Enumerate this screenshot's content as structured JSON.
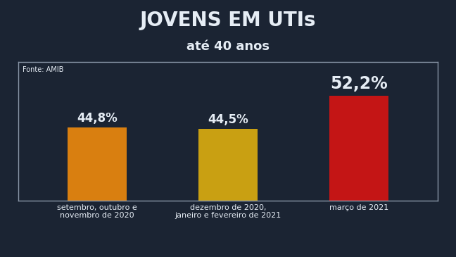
{
  "chart_data": {
    "type": "bar",
    "title": "JOVENS EM UTIs",
    "subtitle": "até 40 anos",
    "source": "Fonte: AMIB",
    "categories": [
      "setembro, outubro e\nnovembro de 2020",
      "dezembro de 2020,\njaneiro e fevereiro de 2021",
      "março de 2021"
    ],
    "values": [
      44.8,
      44.5,
      52.2
    ],
    "value_labels": [
      "44,8%",
      "44,5%",
      "52,2%"
    ],
    "colors": [
      "#d97f10",
      "#c9a012",
      "#c41515"
    ],
    "ylim": [
      28,
      60
    ],
    "yticks": [],
    "data_labels": true,
    "tick_labels": "x",
    "grid": false
  }
}
